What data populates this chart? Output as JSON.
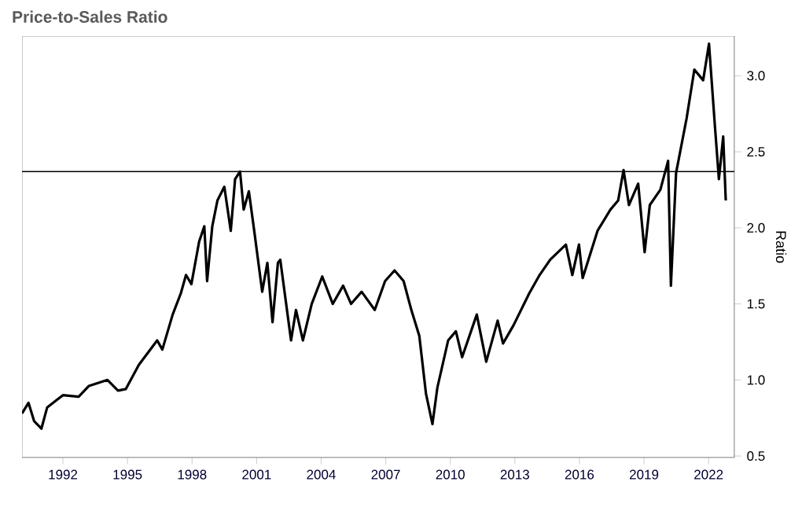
{
  "chart_data": {
    "type": "line",
    "title": "Price-to-Sales Ratio",
    "ylabel": "Ratio",
    "xlim": [
      1990.1,
      2023.2
    ],
    "xticks": [
      1992,
      1995,
      1998,
      2001,
      2004,
      2007,
      2010,
      2013,
      2016,
      2019,
      2022
    ],
    "ylim": [
      0.49,
      3.26
    ],
    "yticks": [
      0.5,
      {
        "value": 1,
        "label": "1.0"
      },
      1.5,
      {
        "value": 2,
        "label": "2.0"
      },
      2.5,
      {
        "value": 3,
        "label": "3.0"
      }
    ],
    "grid": false,
    "line_style": "solid",
    "marker": "none",
    "ref_lines": [
      {
        "axis": "y",
        "value": 2.37,
        "color": "#000000"
      }
    ],
    "series": [
      {
        "color": "#000000",
        "x": [
          1990.1,
          1990.4,
          1990.66,
          1991.0,
          1991.27,
          1992.0,
          1992.73,
          1993.2,
          1994.07,
          1994.56,
          1994.92,
          1995.53,
          1996.38,
          1996.62,
          1997.1,
          1997.48,
          1997.72,
          1997.97,
          1998.33,
          1998.57,
          1998.7,
          1998.94,
          1999.18,
          1999.5,
          1999.8,
          2000.0,
          2000.23,
          2000.4,
          2000.64,
          2000.89,
          2001.26,
          2001.5,
          2001.74,
          2001.99,
          2002.1,
          2002.6,
          2002.83,
          2003.15,
          2003.56,
          2004.05,
          2004.54,
          2005.02,
          2005.39,
          2005.88,
          2006.49,
          2006.97,
          2007.41,
          2007.83,
          2008.19,
          2008.56,
          2008.87,
          2009.17,
          2009.4,
          2009.9,
          2010.26,
          2010.55,
          2011.23,
          2011.67,
          2012.2,
          2012.45,
          2012.94,
          2013.67,
          2014.15,
          2014.64,
          2015.37,
          2015.67,
          2015.98,
          2016.15,
          2016.84,
          2017.44,
          2017.8,
          2018.05,
          2018.3,
          2018.73,
          2019.03,
          2019.27,
          2019.76,
          2020.12,
          2020.25,
          2020.49,
          2020.98,
          2021.34,
          2021.75,
          2022.02,
          2022.3,
          2022.48,
          2022.68,
          2022.8
        ],
        "values": [
          0.78,
          0.85,
          0.73,
          0.68,
          0.82,
          0.9,
          0.89,
          0.96,
          1.0,
          0.93,
          0.94,
          1.1,
          1.26,
          1.2,
          1.43,
          1.57,
          1.69,
          1.63,
          1.91,
          2.01,
          1.65,
          2.01,
          2.18,
          2.27,
          1.98,
          2.32,
          2.37,
          2.12,
          2.24,
          1.98,
          1.58,
          1.77,
          1.38,
          1.77,
          1.79,
          1.26,
          1.46,
          1.26,
          1.5,
          1.68,
          1.5,
          1.62,
          1.5,
          1.58,
          1.46,
          1.65,
          1.72,
          1.65,
          1.46,
          1.29,
          0.91,
          0.71,
          0.95,
          1.26,
          1.32,
          1.15,
          1.43,
          1.12,
          1.39,
          1.24,
          1.36,
          1.57,
          1.69,
          1.79,
          1.89,
          1.69,
          1.89,
          1.67,
          1.98,
          2.12,
          2.18,
          2.38,
          2.15,
          2.29,
          1.84,
          2.15,
          2.25,
          2.44,
          1.62,
          2.36,
          2.72,
          3.04,
          2.97,
          3.21,
          2.66,
          2.32,
          2.6,
          2.18
        ]
      }
    ]
  }
}
